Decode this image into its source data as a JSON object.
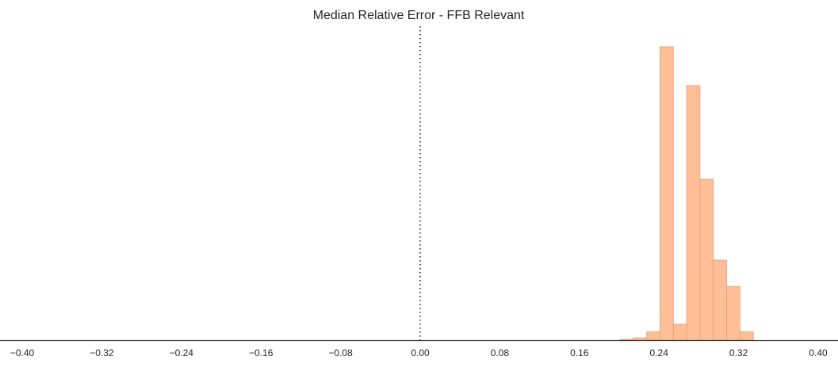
{
  "chart_data": {
    "type": "bar",
    "title": "Median Relative Error - FFB Relevant",
    "xlabel": "",
    "ylabel": "",
    "xlim": [
      -0.4,
      0.4
    ],
    "ylim": [
      0,
      100
    ],
    "x_ticks": [
      "−0.40",
      "−0.32",
      "−0.24",
      "−0.16",
      "−0.08",
      "0.00",
      "0.08",
      "0.16",
      "0.24",
      "0.32",
      "0.40"
    ],
    "x_tick_values": [
      -0.4,
      -0.32,
      -0.24,
      -0.16,
      -0.08,
      0.0,
      0.08,
      0.16,
      0.24,
      0.32,
      0.4
    ],
    "reference_line": {
      "x": 0.0,
      "style": "dotted"
    },
    "bin_width": 0.0134,
    "series": [
      {
        "name": "FFB Relevant",
        "color": "#FFBE96",
        "edge_color": "#E0A078",
        "bins": [
          {
            "x": 0.2008,
            "value": 0.3
          },
          {
            "x": 0.2142,
            "value": 0.8
          },
          {
            "x": 0.2276,
            "value": 2.9
          },
          {
            "x": 0.241,
            "value": 100.0
          },
          {
            "x": 0.2544,
            "value": 5.5
          },
          {
            "x": 0.2678,
            "value": 86.8
          },
          {
            "x": 0.2812,
            "value": 54.9
          },
          {
            "x": 0.2946,
            "value": 27.3
          },
          {
            "x": 0.308,
            "value": 18.3
          },
          {
            "x": 0.3214,
            "value": 2.9
          }
        ]
      }
    ],
    "grid": false,
    "axis_color": "#262626"
  }
}
